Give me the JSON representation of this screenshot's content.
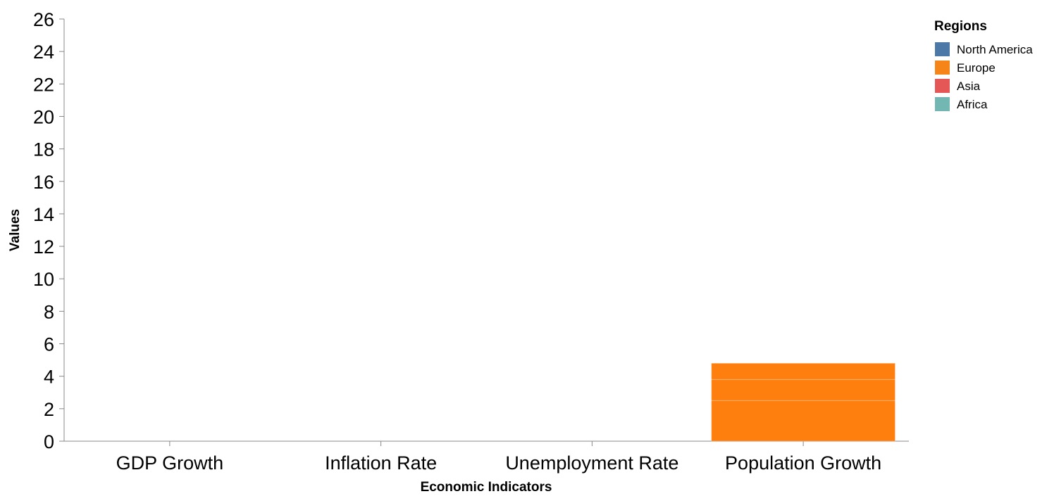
{
  "chart_data": {
    "type": "bar",
    "stacked": true,
    "title": "",
    "xlabel": "Economic Indicators",
    "ylabel": "Values",
    "ylim": [
      0,
      26
    ],
    "yticks": [
      0,
      2,
      4,
      6,
      8,
      10,
      12,
      14,
      16,
      18,
      20,
      22,
      24,
      26
    ],
    "grid": false,
    "legend": {
      "title": "Regions",
      "placement": "top-right"
    },
    "categories": [
      "GDP Growth",
      "Inflation Rate",
      "Unemployment Rate",
      "Population Growth"
    ],
    "series": [
      {
        "name": "North America",
        "color": "#4c78a8",
        "values": [
          0,
          0,
          0,
          0
        ]
      },
      {
        "name": "Europe",
        "color": "#f58518",
        "values": [
          0,
          0,
          0,
          2.5
        ]
      },
      {
        "name": "Asia",
        "color": "#e45756",
        "values": [
          0,
          0,
          0,
          1.3
        ]
      },
      {
        "name": "Africa",
        "color": "#72b7b2",
        "values": [
          0,
          0,
          0,
          1.0
        ]
      }
    ],
    "stack_color_override": "#ff7f0e"
  }
}
